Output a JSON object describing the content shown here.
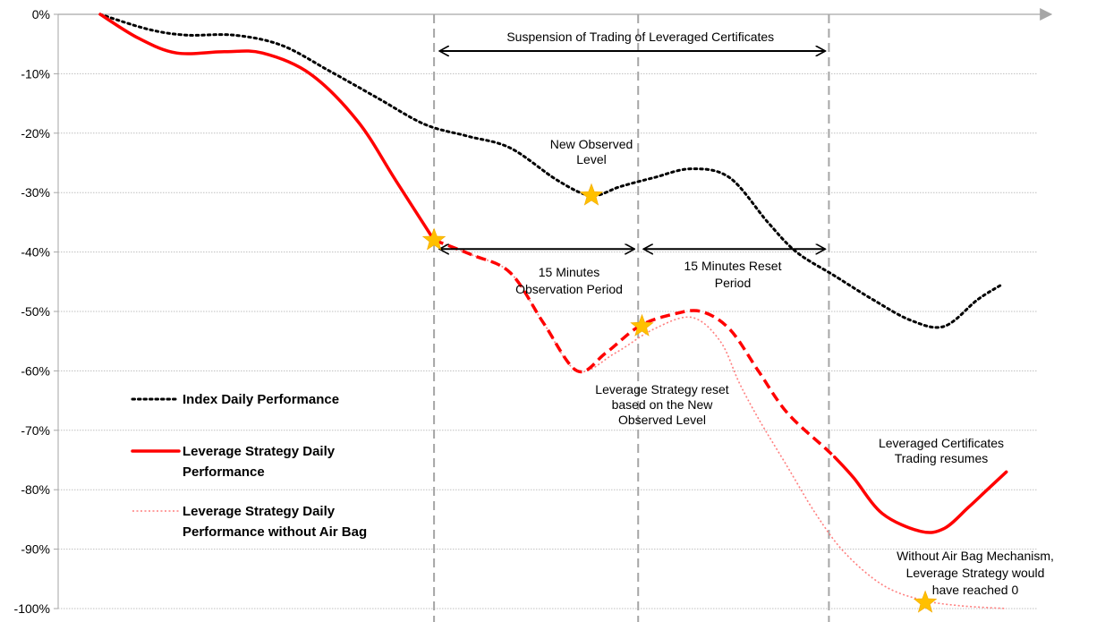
{
  "chart_data": {
    "type": "line",
    "y_unit": "%",
    "ylim": [
      -100,
      0
    ],
    "y_ticks": [
      "0%",
      "-10%",
      "-20%",
      "-30%",
      "-40%",
      "-50%",
      "-60%",
      "-70%",
      "-80%",
      "-90%",
      "-100%"
    ],
    "y_tick_values": [
      0,
      -10,
      -20,
      -30,
      -40,
      -50,
      -60,
      -70,
      -80,
      -90,
      -100
    ],
    "xlim": [
      0,
      100
    ],
    "grid": "horizontal",
    "legend_placement": "left",
    "event_x_values": [
      35,
      56.4,
      76.4
    ],
    "series": [
      {
        "name": "Index Daily Performance",
        "color": "#000000",
        "style": "dotted",
        "points": [
          [
            0,
            0
          ],
          [
            5,
            -2.5
          ],
          [
            9,
            -3.5
          ],
          [
            14,
            -3.5
          ],
          [
            19,
            -5.2
          ],
          [
            24,
            -9.5
          ],
          [
            29,
            -14
          ],
          [
            34,
            -18.5
          ],
          [
            38.5,
            -20.5
          ],
          [
            43,
            -22.5
          ],
          [
            48,
            -28
          ],
          [
            51.5,
            -30.5
          ],
          [
            54.5,
            -29
          ],
          [
            58,
            -27.5
          ],
          [
            62,
            -26
          ],
          [
            66,
            -27.5
          ],
          [
            70,
            -35
          ],
          [
            73,
            -40
          ],
          [
            77,
            -44
          ],
          [
            81,
            -48
          ],
          [
            85,
            -51.5
          ],
          [
            88.5,
            -52.5
          ],
          [
            92,
            -48
          ],
          [
            94.5,
            -45.5
          ]
        ]
      },
      {
        "name": "Leverage Strategy Daily Performance",
        "color": "#ff0000",
        "style": "solid",
        "points": [
          [
            0,
            0
          ],
          [
            4,
            -4
          ],
          [
            8,
            -6.5
          ],
          [
            13,
            -6.3
          ],
          [
            17,
            -6.5
          ],
          [
            22,
            -10
          ],
          [
            27,
            -18
          ],
          [
            31,
            -28
          ],
          [
            35,
            -38
          ]
        ]
      },
      {
        "name": "Leverage Strategy Daily Performance",
        "color": "#ff0000",
        "style": "dashed",
        "points": [
          [
            35,
            -38
          ],
          [
            39,
            -40.5
          ],
          [
            43,
            -43.5
          ],
          [
            46.5,
            -52
          ],
          [
            50,
            -60
          ],
          [
            53,
            -57
          ],
          [
            56.5,
            -52.5
          ],
          [
            60,
            -50.5
          ],
          [
            63,
            -50
          ],
          [
            66,
            -53
          ],
          [
            69,
            -60
          ],
          [
            72,
            -67
          ],
          [
            76,
            -73
          ],
          [
            77,
            -74.5
          ]
        ]
      },
      {
        "name": "Leverage Strategy Daily Performance",
        "color": "#ff0000",
        "style": "solid",
        "points": [
          [
            77,
            -74.5
          ],
          [
            79,
            -78
          ],
          [
            82,
            -84
          ],
          [
            86,
            -87
          ],
          [
            88.5,
            -86.5
          ],
          [
            91,
            -83
          ],
          [
            93,
            -80
          ],
          [
            95,
            -77
          ]
        ]
      },
      {
        "name": "Leverage Strategy Daily Performance without Air Bag",
        "color": "#ff7f7f",
        "style": "dotted",
        "points": [
          [
            35,
            -38
          ],
          [
            39,
            -40.5
          ],
          [
            43,
            -43.5
          ],
          [
            46.5,
            -52
          ],
          [
            50,
            -60
          ],
          [
            54,
            -57
          ],
          [
            58,
            -53
          ],
          [
            62,
            -51
          ],
          [
            65,
            -55
          ],
          [
            67,
            -62
          ],
          [
            69,
            -68
          ],
          [
            72,
            -76
          ],
          [
            75,
            -84
          ],
          [
            78,
            -90.5
          ],
          [
            82,
            -96
          ],
          [
            86,
            -98.5
          ],
          [
            90,
            -99.5
          ],
          [
            95,
            -100
          ]
        ]
      }
    ],
    "markers": [
      {
        "label": "star",
        "x": 35,
        "y": -38
      },
      {
        "label": "star",
        "x": 51.5,
        "y": -30.5
      },
      {
        "label": "star",
        "x": 56.8,
        "y": -52.5
      },
      {
        "label": "star",
        "x": 86.5,
        "y": -99
      }
    ],
    "annotations": {
      "suspension": "Suspension of  Trading of Leveraged Certificates",
      "new_observed": [
        "New Observed",
        "Level"
      ],
      "observation_period": [
        "15 Minutes",
        "Observation Period"
      ],
      "reset_period": [
        "15 Minutes Reset",
        "Period"
      ],
      "reset_based": [
        "Leverage Strategy reset",
        "based on the New",
        "Observed Level"
      ],
      "trading_resumes": [
        "Leveraged Certificates",
        "Trading resumes"
      ],
      "without_airbag": [
        "Without Air Bag Mechanism,",
        "Leverage Strategy would",
        "have reached 0"
      ]
    },
    "legend": [
      {
        "lines": [
          "Index Daily Performance"
        ],
        "color": "#000000",
        "style": "dotted"
      },
      {
        "lines": [
          "Leverage Strategy Daily",
          "Performance"
        ],
        "color": "#ff0000",
        "style": "solid"
      },
      {
        "lines": [
          "Leverage Strategy Daily",
          "Performance without Air Bag"
        ],
        "color": "#ff7f7f",
        "style": "dotted"
      }
    ],
    "star_color": "#ffc000",
    "grid_color": "#bfbfbf",
    "event_line_color": "#a6a6a6"
  }
}
